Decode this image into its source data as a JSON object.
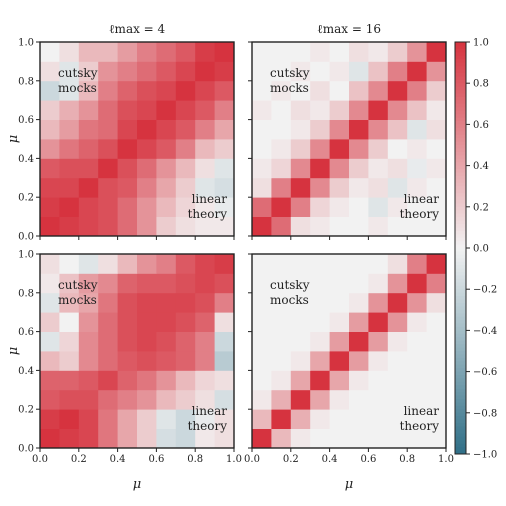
{
  "chart_data": {
    "type": "heatmap",
    "column_titles": [
      "ℓmax = 4",
      "ℓmax = 16"
    ],
    "xlabel": "μ",
    "ylabel": "μ",
    "xlim": [
      0.0,
      1.0
    ],
    "ylim": [
      0.0,
      1.0
    ],
    "x_ticks": [
      "0.0",
      "0.2",
      "0.4",
      "0.6",
      "0.8",
      "1.0"
    ],
    "y_ticks": [
      "0.0",
      "0.2",
      "0.4",
      "0.6",
      "0.8",
      "1.0"
    ],
    "colorbar": {
      "range": [
        -1.0,
        1.0
      ],
      "ticks": [
        "1.0",
        "0.8",
        "0.6",
        "0.4",
        "0.2",
        "0.0",
        "−0.2",
        "−0.4",
        "−0.6",
        "−0.8",
        "−1.0"
      ],
      "low_color": "#2f6f87",
      "mid_color": "#f2f2f2",
      "high_color": "#d6333f"
    },
    "annotations": {
      "upper_left": [
        "cutsky",
        "mocks"
      ],
      "lower_right": [
        "linear",
        "theory"
      ]
    },
    "panels": [
      {
        "row": 0,
        "col": 0,
        "nbins": 10,
        "matrix": [
          [
            1.0,
            0.95,
            0.9,
            0.85,
            0.7,
            0.5,
            0.2,
            0.1,
            0.05,
            0.05
          ],
          [
            0.95,
            1.0,
            0.9,
            0.85,
            0.7,
            0.5,
            0.3,
            0.15,
            0.05,
            -0.05
          ],
          [
            0.9,
            0.9,
            1.0,
            0.85,
            0.8,
            0.6,
            0.4,
            0.2,
            -0.1,
            -0.15
          ],
          [
            0.8,
            0.85,
            0.85,
            1.0,
            0.85,
            0.7,
            0.5,
            0.3,
            0.1,
            -0.1
          ],
          [
            0.5,
            0.65,
            0.75,
            0.85,
            1.0,
            0.9,
            0.8,
            0.6,
            0.3,
            0.2
          ],
          [
            0.3,
            0.45,
            0.65,
            0.7,
            0.9,
            1.0,
            0.9,
            0.8,
            0.6,
            0.4
          ],
          [
            0.2,
            0.35,
            0.5,
            0.7,
            0.85,
            0.9,
            1.0,
            0.9,
            0.8,
            0.6
          ],
          [
            -0.2,
            -0.1,
            0.3,
            0.6,
            0.75,
            0.85,
            0.9,
            1.0,
            0.9,
            0.8
          ],
          [
            0.1,
            -0.1,
            0.2,
            0.5,
            0.6,
            0.7,
            0.8,
            0.9,
            1.0,
            0.95
          ],
          [
            0.0,
            0.1,
            0.3,
            0.3,
            0.45,
            0.6,
            0.7,
            0.8,
            0.95,
            1.0
          ]
        ]
      },
      {
        "row": 0,
        "col": 1,
        "nbins": 10,
        "matrix": [
          [
            1.0,
            0.7,
            0.1,
            0.05,
            0.0,
            0.0,
            0.05,
            0.0,
            0.0,
            0.0
          ],
          [
            0.7,
            1.0,
            0.6,
            0.15,
            0.05,
            0.0,
            -0.1,
            0.05,
            0.0,
            0.0
          ],
          [
            0.1,
            0.6,
            1.0,
            0.55,
            0.2,
            0.05,
            0.1,
            -0.1,
            0.05,
            0.0
          ],
          [
            0.05,
            0.15,
            0.55,
            1.0,
            0.55,
            0.2,
            0.05,
            0.1,
            -0.05,
            0.05
          ],
          [
            0.0,
            0.05,
            0.2,
            0.55,
            1.0,
            0.55,
            0.2,
            0.0,
            0.05,
            0.0
          ],
          [
            0.0,
            0.0,
            0.05,
            0.2,
            0.55,
            1.0,
            0.55,
            0.25,
            -0.1,
            0.1
          ],
          [
            0.05,
            0.0,
            0.1,
            0.05,
            0.2,
            0.55,
            1.0,
            0.55,
            0.25,
            0.05
          ],
          [
            0.0,
            0.05,
            0.0,
            0.1,
            0.0,
            0.25,
            0.55,
            1.0,
            0.6,
            0.2
          ],
          [
            0.0,
            0.0,
            0.05,
            0.0,
            0.05,
            -0.1,
            0.25,
            0.6,
            1.0,
            0.5
          ],
          [
            0.0,
            0.0,
            0.0,
            0.05,
            0.0,
            0.1,
            0.05,
            0.2,
            0.5,
            1.0
          ]
        ]
      },
      {
        "row": 1,
        "col": 0,
        "nbins": 10,
        "matrix": [
          [
            1.0,
            0.95,
            0.9,
            0.65,
            0.4,
            0.2,
            -0.15,
            -0.2,
            0.05,
            0.1
          ],
          [
            0.95,
            1.0,
            0.9,
            0.65,
            0.4,
            0.2,
            -0.1,
            -0.2,
            -0.05,
            0.1
          ],
          [
            0.8,
            0.85,
            0.85,
            0.7,
            0.6,
            0.5,
            0.3,
            0.2,
            0.1,
            -0.15
          ],
          [
            0.75,
            0.75,
            0.8,
            0.9,
            0.75,
            0.65,
            0.5,
            0.3,
            0.15,
            0.1
          ],
          [
            0.3,
            0.2,
            0.55,
            0.7,
            0.8,
            0.85,
            0.8,
            0.75,
            0.6,
            -0.3
          ],
          [
            -0.1,
            0.15,
            0.55,
            0.7,
            0.85,
            0.9,
            0.85,
            0.75,
            0.6,
            -0.2
          ],
          [
            0.2,
            0.0,
            0.5,
            0.7,
            0.85,
            0.9,
            0.9,
            0.85,
            0.75,
            0.1
          ],
          [
            -0.1,
            0.3,
            0.4,
            0.65,
            0.85,
            0.9,
            0.9,
            0.9,
            0.85,
            0.6
          ],
          [
            0.05,
            0.25,
            0.45,
            0.55,
            0.75,
            0.8,
            0.8,
            0.85,
            0.9,
            0.85
          ],
          [
            0.1,
            0.0,
            -0.1,
            0.1,
            0.3,
            0.5,
            0.6,
            0.8,
            0.9,
            0.95
          ]
        ]
      },
      {
        "row": 1,
        "col": 1,
        "nbins": 10,
        "matrix": [
          [
            1.0,
            0.3,
            0.05,
            0.0,
            0.0,
            0.0,
            0.0,
            0.0,
            0.0,
            0.0
          ],
          [
            0.3,
            1.0,
            0.35,
            0.05,
            0.0,
            0.0,
            0.0,
            0.0,
            0.0,
            0.0
          ],
          [
            0.05,
            0.35,
            1.0,
            0.4,
            0.05,
            0.0,
            0.0,
            0.0,
            0.0,
            0.0
          ],
          [
            0.0,
            0.05,
            0.4,
            1.0,
            0.4,
            0.05,
            0.0,
            0.0,
            0.0,
            0.0
          ],
          [
            0.0,
            0.0,
            0.05,
            0.4,
            1.0,
            0.45,
            0.05,
            0.0,
            0.0,
            0.0
          ],
          [
            0.0,
            0.0,
            0.0,
            0.05,
            0.45,
            1.0,
            0.45,
            0.05,
            0.0,
            0.0
          ],
          [
            0.0,
            0.0,
            0.0,
            0.0,
            0.05,
            0.45,
            1.0,
            0.5,
            0.05,
            0.0
          ],
          [
            0.0,
            0.0,
            0.0,
            0.0,
            0.0,
            0.05,
            0.5,
            1.0,
            0.5,
            0.1
          ],
          [
            0.0,
            0.0,
            0.0,
            0.0,
            0.0,
            0.0,
            0.05,
            0.5,
            1.0,
            0.6
          ],
          [
            0.0,
            0.0,
            0.0,
            0.0,
            0.0,
            0.0,
            0.0,
            0.1,
            0.6,
            1.0
          ]
        ]
      }
    ]
  }
}
